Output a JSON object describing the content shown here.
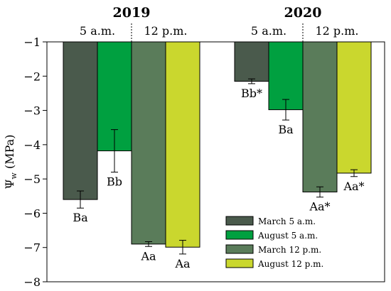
{
  "chart_data": {
    "type": "bar",
    "ylabel": "Ψ",
    "ylabel_sub": "w",
    "ylabel_unit": " (MPa)",
    "ylim": [
      -8,
      -1
    ],
    "yticks": [
      -1,
      -2,
      -3,
      -4,
      -5,
      -6,
      -7,
      -8
    ],
    "ytick_labels": [
      "−1",
      "−2",
      "−3",
      "−4",
      "−5",
      "−6",
      "−7",
      "−8"
    ],
    "grid": false,
    "legend_position": "bottom-right",
    "years": [
      {
        "year": "2019",
        "time_labels": [
          "5 a.m.",
          "12 p.m."
        ],
        "bars": [
          {
            "series": "March 5 a.m.",
            "value": -5.6,
            "error": 0.25,
            "label": "Ba"
          },
          {
            "series": "August 5 a.m.",
            "value": -4.18,
            "error": 0.62,
            "label": "Bb"
          },
          {
            "series": "March 12 p.m.",
            "value": -6.9,
            "error": 0.07,
            "label": "Aa"
          },
          {
            "series": "August 12 p.m.",
            "value": -6.99,
            "error": 0.2,
            "label": "Aa"
          }
        ]
      },
      {
        "year": "2020",
        "time_labels": [
          "5 a.m.",
          "12 p.m."
        ],
        "bars": [
          {
            "series": "March 5 a.m.",
            "value": -2.15,
            "error": 0.07,
            "label": "Bb*"
          },
          {
            "series": "August 5 a.m.",
            "value": -2.98,
            "error": 0.3,
            "label": "Ba"
          },
          {
            "series": "March 12 p.m.",
            "value": -5.38,
            "error": 0.15,
            "label": "Aa*"
          },
          {
            "series": "August 12 p.m.",
            "value": -4.83,
            "error": 0.1,
            "label": "Aa*"
          }
        ]
      }
    ],
    "series": [
      {
        "name": "March 5 a.m.",
        "color": "#4a5a4c"
      },
      {
        "name": "August 5 a.m.",
        "color": "#00a040"
      },
      {
        "name": "March 12 p.m.",
        "color": "#5a7c5a"
      },
      {
        "name": "August 12 p.m.",
        "color": "#cad72e"
      }
    ]
  }
}
